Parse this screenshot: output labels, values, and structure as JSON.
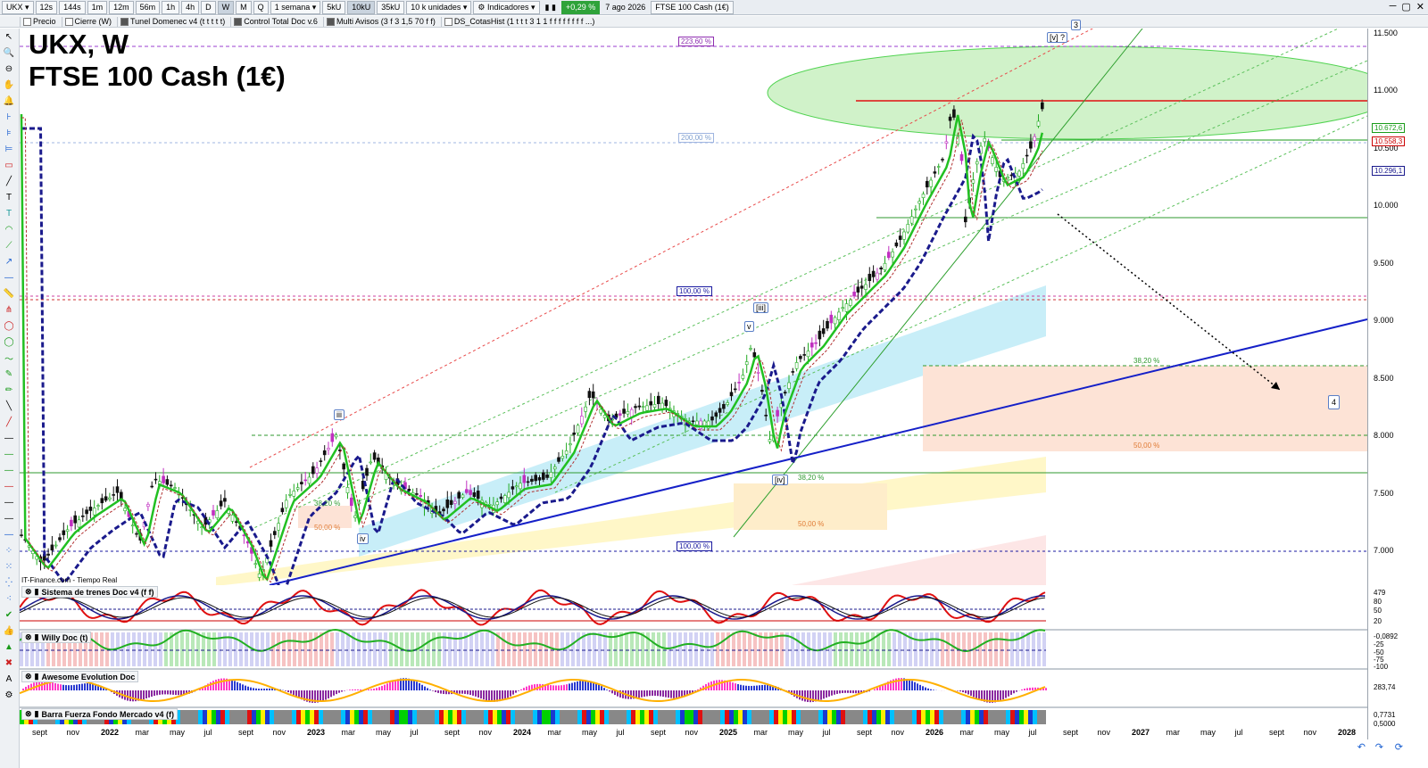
{
  "toolbar": {
    "symbol": "UKX",
    "timeframes": [
      "12s",
      "144s",
      "1m",
      "12m",
      "56m",
      "1h",
      "4h",
      "D",
      "W",
      "M",
      "Q"
    ],
    "period": "1 semana",
    "units": [
      "5kU",
      "10kU",
      "35kU"
    ],
    "units_select": "10 k unidades",
    "indicators_label": "Indicadores",
    "change_pct": "+0,29 %",
    "date": "7 ago 2026",
    "instrument": "FTSE 100 Cash (1€)"
  },
  "secondary": {
    "items": [
      {
        "label": "Precio",
        "checked": false
      },
      {
        "label": "Cierre (W)",
        "checked": false
      },
      {
        "label": "Tunel Domenec v4 (t t t t t)",
        "checked": true
      },
      {
        "label": "Control Total Doc v.6",
        "checked": true
      },
      {
        "label": "Multi Avisos (3 f 3 1,5 70 f f)",
        "checked": true
      },
      {
        "label": "DS_CotasHist (1 t t t 3 1 1 f f f f f f f f ...)",
        "checked": false
      }
    ]
  },
  "chart": {
    "title_line1": "UKX, W",
    "title_line2": "FTSE 100 Cash (1€)",
    "source": "IT-Finance.com - Tiempo Real",
    "y_ticks": [
      "11.500",
      "11.000",
      "10.500",
      "10.000",
      "9.500",
      "9.000",
      "8.500",
      "8.000",
      "7.500",
      "7.000"
    ],
    "price_badges": [
      {
        "label": "10.672,6",
        "color": "#1a9c1a"
      },
      {
        "label": "10.558,3",
        "color": "#cc0000"
      },
      {
        "label": "10.296,1",
        "color": "#1a1a8c"
      }
    ],
    "fib_labels": [
      {
        "text": "223,60 %",
        "color": "#8e2db0"
      },
      {
        "text": "200,00 %",
        "color": "#7f9fcf"
      },
      {
        "text": "100,00 %",
        "color": "#1a1aa0"
      },
      {
        "text": "100,00 %",
        "color": "#1a1aa0"
      },
      {
        "text": "38,20 %",
        "color": "#2f9a2f"
      },
      {
        "text": "50,00 %",
        "color": "#e07b35"
      },
      {
        "text": "38,20 %",
        "color": "#2f9a2f"
      },
      {
        "text": "50,00 %",
        "color": "#e07b35"
      },
      {
        "text": "38,20 %",
        "color": "#2f9a2f"
      },
      {
        "text": "50,00 %",
        "color": "#e07b35"
      }
    ],
    "wave_labels": [
      "iii",
      "iv",
      "v",
      "[iii]",
      "[iv]",
      "[v] ?",
      "3",
      "4"
    ],
    "x_labels": [
      "sept",
      "nov",
      "2022",
      "mar",
      "may",
      "jul",
      "sept",
      "nov",
      "2023",
      "mar",
      "may",
      "jul",
      "sept",
      "nov",
      "2024",
      "mar",
      "may",
      "jul",
      "sept",
      "nov",
      "2025",
      "mar",
      "may",
      "jul",
      "sept",
      "nov",
      "2026",
      "mar",
      "may",
      "jul",
      "sept",
      "nov",
      "2027",
      "mar",
      "may",
      "jul",
      "sept",
      "nov",
      "2028"
    ]
  },
  "panels": [
    {
      "name": "Sistema de trenes Doc v4 (f f)",
      "ticks": [
        "479",
        "80",
        "50",
        "20"
      ]
    },
    {
      "name": "Willy Doc (t)",
      "ticks": [
        "-0,0892",
        "-25",
        "-50",
        "-75",
        "-100"
      ]
    },
    {
      "name": "Awesome Evolution Doc",
      "ticks": [
        "283,74"
      ]
    },
    {
      "name": "Barra Fuerza Fondo Mercado v4 (f)",
      "ticks": [
        "0,7731",
        "0,5000"
      ]
    }
  ]
}
